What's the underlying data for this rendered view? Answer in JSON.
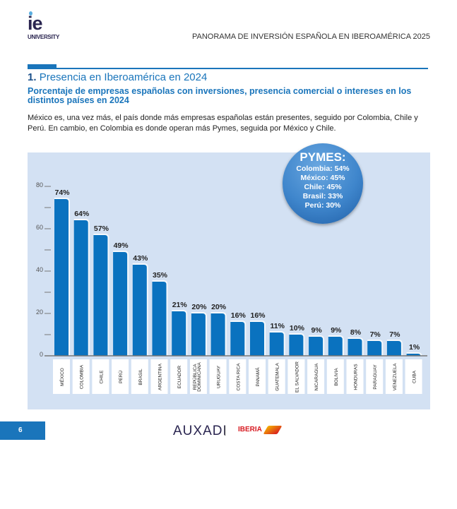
{
  "header": {
    "logo_text": "ie",
    "logo_sub": "UNIVERSITY",
    "title": "PANORAMA DE INVERSIÓN ESPAÑOLA EN IBEROAMÉRICA 2025"
  },
  "section": {
    "number": "1.",
    "title": "Presencia en Iberoamérica en 2024",
    "subtitle": "Porcentaje de empresas españolas con inversiones, presencia comercial o intereses en los distintos países en 2024",
    "body": "México es, una vez más, el país donde más empresas españolas están presentes, seguido por Colombia, Chile y Perú. En cambio, en Colombia es donde operan más Pymes, seguida por México y Chile."
  },
  "pymes": {
    "title": "PYMES:",
    "items": [
      "Colombia: 54%",
      "México: 45%",
      "Chile: 45%",
      "Brasil: 33%",
      "Perú: 30%"
    ]
  },
  "chart_data": {
    "type": "bar",
    "title": "Porcentaje de empresas españolas con inversiones, presencia comercial o intereses en los distintos países en 2024",
    "categories": [
      "MÉXICO",
      "COLOMBIA",
      "CHILE",
      "PERÚ",
      "BRASIL",
      "ARGENTINA",
      "ECUADOR",
      "REPÚBLICA DOMINICANA",
      "URUGUAY",
      "COSTA RICA",
      "PANAMÁ",
      "GUATEMALA",
      "EL SALVADOR",
      "NICARAGUA",
      "BOLIVIA",
      "HONDURAS",
      "PARAGUAY",
      "VENEZUELA",
      "CUBA"
    ],
    "values": [
      74,
      64,
      57,
      49,
      43,
      35,
      21,
      20,
      20,
      16,
      16,
      11,
      10,
      9,
      9,
      8,
      7,
      7,
      1
    ],
    "data_labels": [
      "74%",
      "64%",
      "57%",
      "49%",
      "43%",
      "35%",
      "21%",
      "20%",
      "20%",
      "16%",
      "16%",
      "11%",
      "10%",
      "9%",
      "9%",
      "8%",
      "7%",
      "7%",
      "1%"
    ],
    "yticks": [
      "0",
      "20",
      "40",
      "60",
      "80"
    ],
    "ylim": [
      0,
      80
    ],
    "xlabel": "",
    "ylabel": "",
    "bar_color": "#0a72bf",
    "background": "#d3e1f3"
  },
  "footer": {
    "page": "6",
    "brand1": "AUXADI",
    "brand2": "IBERIA"
  }
}
